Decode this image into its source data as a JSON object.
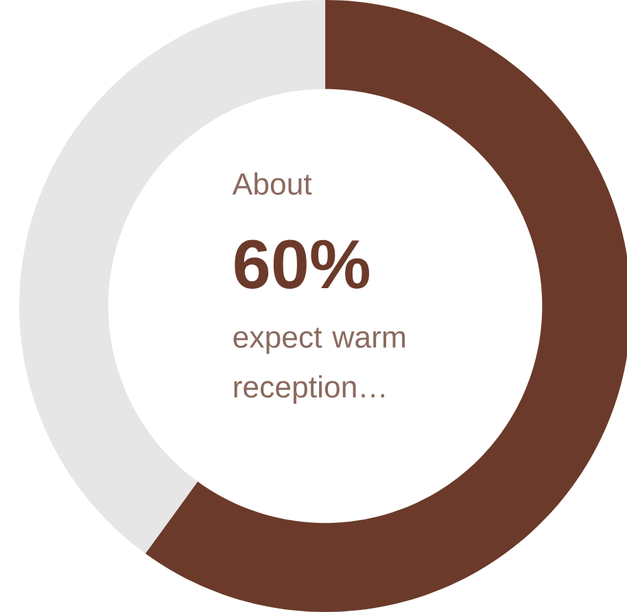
{
  "chart_data": {
    "type": "donut",
    "categories": [
      null,
      null
    ],
    "values": [
      60,
      40
    ],
    "colors": [
      "#6b3a2a",
      "#e6e6e6"
    ],
    "annotations": [
      "About",
      "60%",
      "expect warm reception…"
    ]
  }
}
